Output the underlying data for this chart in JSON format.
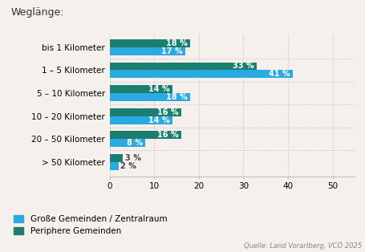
{
  "title": "Weglänge:",
  "categories": [
    "bis 1 Kilometer",
    "1 – 5 Kilometer",
    "5 – 10 Kilometer",
    "10 – 20 Kilometer",
    "20 – 50 Kilometer",
    "> 50 Kilometer"
  ],
  "series1_label": "Große Gemeinden / Zentralraum",
  "series1_values": [
    17,
    41,
    18,
    14,
    8,
    2
  ],
  "series1_color": "#29abe2",
  "series2_label": "Periphere Gemeinden",
  "series2_values": [
    18,
    33,
    14,
    16,
    16,
    3
  ],
  "series2_color": "#1a7f6e",
  "xlim": [
    0,
    55
  ],
  "xticks": [
    0,
    10,
    20,
    30,
    40,
    50
  ],
  "bar_height": 0.35,
  "background_color": "#f5f0eb",
  "grid_color": "#c8c0b8",
  "source_text": "Quelle: Land Vorarlberg, VCÖ 2025",
  "label_fontsize": 7.0,
  "tick_fontsize": 7.5,
  "title_fontsize": 9,
  "legend_fontsize": 7.5,
  "source_fontsize": 6.0,
  "label_threshold": 5
}
